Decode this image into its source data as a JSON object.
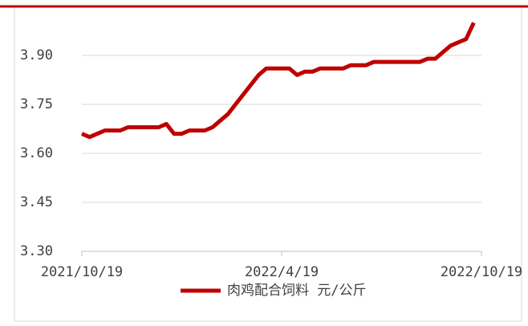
{
  "chart_data": {
    "type": "line",
    "categories": [
      "2021/10/19",
      null,
      null,
      null,
      null,
      null,
      null,
      null,
      null,
      null,
      null,
      null,
      null,
      null,
      null,
      null,
      null,
      null,
      null,
      null,
      null,
      null,
      null,
      null,
      null,
      null,
      "2022/4/19",
      null,
      null,
      null,
      null,
      null,
      null,
      null,
      null,
      null,
      null,
      null,
      null,
      null,
      null,
      null,
      null,
      null,
      null,
      null,
      null,
      null,
      null,
      null,
      null,
      null,
      "2022/10/19"
    ],
    "series": [
      {
        "name": "肉鸡配合饲料 元/公斤",
        "color": "#c00000",
        "values": [
          3.66,
          3.65,
          3.66,
          3.67,
          3.67,
          3.67,
          3.68,
          3.68,
          3.68,
          3.68,
          3.68,
          3.69,
          3.66,
          3.66,
          3.67,
          3.67,
          3.67,
          3.68,
          3.7,
          3.72,
          3.75,
          3.78,
          3.81,
          3.84,
          3.86,
          3.86,
          3.86,
          3.86,
          3.84,
          3.85,
          3.85,
          3.86,
          3.86,
          3.86,
          3.86,
          3.87,
          3.87,
          3.87,
          3.88,
          3.88,
          3.88,
          3.88,
          3.88,
          3.88,
          3.88,
          3.89,
          3.89,
          3.91,
          3.93,
          3.94,
          3.95,
          4.0,
          null
        ]
      }
    ],
    "ylim": [
      3.3,
      4.05
    ],
    "yticks": [
      {
        "value": 3.3,
        "label": "3.30"
      },
      {
        "value": 3.45,
        "label": "3.45"
      },
      {
        "value": 3.6,
        "label": "3.60"
      },
      {
        "value": 3.75,
        "label": "3.75"
      },
      {
        "value": 3.9,
        "label": "3.90"
      }
    ],
    "grid": true,
    "legend": "bottom"
  }
}
